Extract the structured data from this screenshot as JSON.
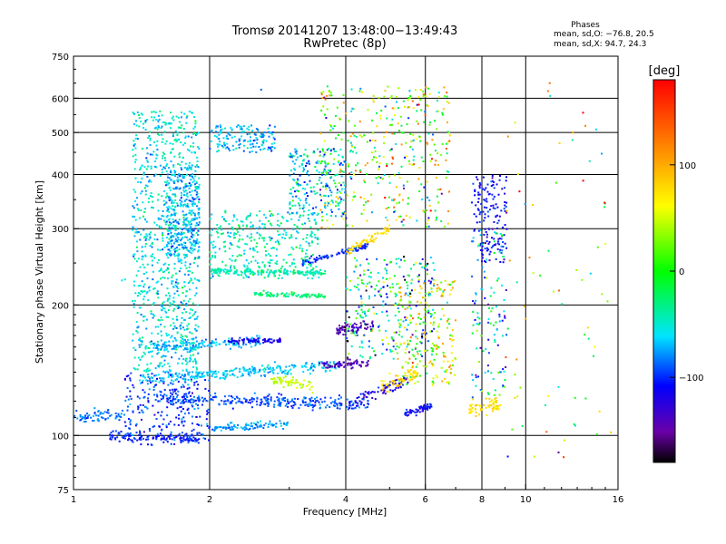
{
  "chart_data": {
    "type": "scatter",
    "title": "Tromsø 20141207 13:48:00−13:49:43",
    "subtitle": "RwPretec (8p)",
    "xlabel": "Frequency [MHz]",
    "ylabel": "Stationary phase Virtual Height [km]",
    "x_scale": "log",
    "y_scale": "log",
    "xlim": [
      1,
      16
    ],
    "ylim": [
      75,
      750
    ],
    "x_ticks": [
      1,
      2,
      4,
      6,
      8,
      10,
      16
    ],
    "x_tick_labels": [
      "1",
      "2",
      "4",
      "6",
      "8",
      "10",
      "16"
    ],
    "y_ticks": [
      75,
      100,
      200,
      300,
      400,
      500,
      600,
      750
    ],
    "y_tick_labels": [
      "75",
      "100",
      "200",
      "300",
      "400",
      "500",
      "600",
      "750"
    ],
    "grid": true,
    "stats": {
      "heading": "Phases",
      "line_o": "mean, sd,O: −76.8, 20.5",
      "line_x": "mean, sd,X:  94.7, 24.3"
    },
    "colorbar": {
      "label": "[deg]",
      "range": [
        -180,
        180
      ],
      "tick_values": [
        100,
        0,
        -100
      ],
      "tick_labels": [
        "100",
        "0",
        "−100"
      ]
    },
    "colors": {
      "low": "#000000",
      "mid_low": "#0000ff",
      "mid": "#00ff00",
      "mid_high": "#ffff00",
      "high": "#ff0000"
    },
    "traces": [
      {
        "x": [
          1.0,
          1.3
        ],
        "h": [
          110,
          112
        ],
        "phase": -85,
        "w": 0.045
      },
      {
        "x": [
          1.2,
          1.9
        ],
        "h": [
          100,
          98
        ],
        "phase": -105,
        "w": 0.04
      },
      {
        "x": [
          1.4,
          3.8
        ],
        "h": [
          135,
          145
        ],
        "phase": -65,
        "w": 0.04
      },
      {
        "x": [
          1.5,
          4.5
        ],
        "h": [
          122,
          118
        ],
        "phase": -95,
        "w": 0.045
      },
      {
        "x": [
          1.5,
          2.6
        ],
        "h": [
          160,
          165
        ],
        "phase": -70,
        "w": 0.04
      },
      {
        "x": [
          2.0,
          3.0
        ],
        "h": [
          104,
          106
        ],
        "phase": -75,
        "w": 0.03
      },
      {
        "x": [
          2.0,
          3.6
        ],
        "h": [
          240,
          237
        ],
        "phase": -40,
        "w": 0.02
      },
      {
        "x": [
          2.5,
          3.6
        ],
        "h": [
          212,
          210
        ],
        "phase": -25,
        "w": 0.02
      },
      {
        "x": [
          2.2,
          2.9
        ],
        "h": [
          165,
          166
        ],
        "phase": -115,
        "w": 0.02
      },
      {
        "x": [
          3.5,
          4.5
        ],
        "h": [
          145,
          147
        ],
        "phase": -140,
        "w": 0.03
      },
      {
        "x": [
          3.2,
          4.5
        ],
        "h": [
          250,
          275
        ],
        "phase": -100,
        "w": 0.025
      },
      {
        "x": [
          4.0,
          5.0
        ],
        "h": [
          265,
          300
        ],
        "phase": 75,
        "w": 0.03
      },
      {
        "x": [
          4.2,
          5.5
        ],
        "h": [
          120,
          135
        ],
        "phase": -120,
        "w": 0.04
      },
      {
        "x": [
          2.7,
          3.4
        ],
        "h": [
          135,
          130
        ],
        "phase": 45,
        "w": 0.04
      },
      {
        "x": [
          3.8,
          4.6
        ],
        "h": [
          175,
          180
        ],
        "phase": -140,
        "w": 0.04
      },
      {
        "x": [
          4.8,
          5.8
        ],
        "h": [
          130,
          140
        ],
        "phase": 80,
        "w": 0.06
      },
      {
        "x": [
          5.4,
          6.2
        ],
        "h": [
          112,
          117
        ],
        "phase": -110,
        "w": 0.03
      },
      {
        "x": [
          7.5,
          8.8
        ],
        "h": [
          115,
          118
        ],
        "phase": 75,
        "w": 0.05
      }
    ],
    "clouds": [
      {
        "x": [
          1.35,
          1.9
        ],
        "h": [
          140,
          560
        ],
        "phase": -55,
        "sd": 25,
        "n": 900
      },
      {
        "x": [
          1.6,
          1.9
        ],
        "h": [
          260,
          420
        ],
        "phase": -70,
        "sd": 20,
        "n": 300
      },
      {
        "x": [
          1.3,
          2.0
        ],
        "h": [
          95,
          140
        ],
        "phase": -100,
        "sd": 20,
        "n": 250
      },
      {
        "x": [
          2.0,
          3.5
        ],
        "h": [
          230,
          330
        ],
        "phase": -45,
        "sd": 25,
        "n": 350
      },
      {
        "x": [
          2.0,
          2.8
        ],
        "h": [
          450,
          520
        ],
        "phase": -70,
        "sd": 25,
        "n": 150
      },
      {
        "x": [
          3.0,
          4.0
        ],
        "h": [
          320,
          460
        ],
        "phase": -60,
        "sd": 40,
        "n": 220
      },
      {
        "x": [
          3.5,
          6.8
        ],
        "h": [
          300,
          640
        ],
        "phase": 20,
        "sd": 100,
        "n": 400
      },
      {
        "x": [
          4.0,
          6.3
        ],
        "h": [
          150,
          260
        ],
        "phase": -40,
        "sd": 90,
        "n": 300
      },
      {
        "x": [
          5.2,
          7.0
        ],
        "h": [
          130,
          230
        ],
        "phase": 50,
        "sd": 60,
        "n": 200
      },
      {
        "x": [
          7.6,
          9.1
        ],
        "h": [
          250,
          400
        ],
        "phase": -110,
        "sd": 15,
        "n": 150
      },
      {
        "x": [
          7.6,
          9.1
        ],
        "h": [
          120,
          300
        ],
        "phase": -60,
        "sd": 60,
        "n": 120
      },
      {
        "x": [
          9.0,
          15.5
        ],
        "h": [
          80,
          650
        ],
        "phase": 30,
        "sd": 110,
        "n": 70
      }
    ],
    "isolated_points": [
      {
        "x": 1.28,
        "h": 228,
        "phase": -60
      },
      {
        "x": 1.3,
        "h": 229,
        "phase": -55
      },
      {
        "x": 11.3,
        "h": 650,
        "phase": 130
      },
      {
        "x": 2.6,
        "h": 628,
        "phase": -90
      }
    ]
  }
}
